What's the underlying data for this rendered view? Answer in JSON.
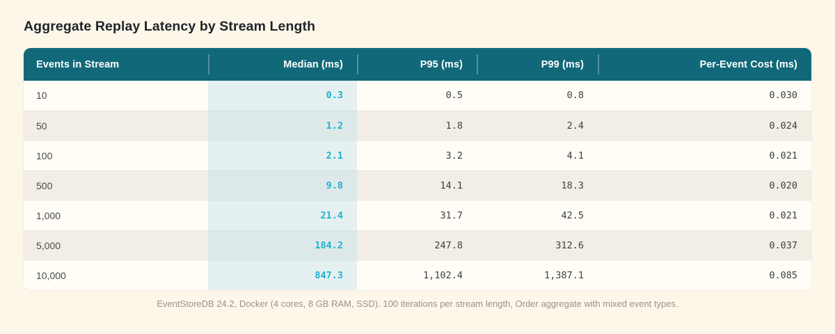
{
  "title": "Aggregate Replay Latency by Stream Length",
  "colors": {
    "page_bg": "#fdf7e9",
    "header_bg": "#116879",
    "median_accent": "#1fb1d2",
    "median_highlight_odd": "#e4f1f0",
    "median_highlight_even": "#dde9e8",
    "row_odd_bg": "#fffdf6",
    "row_even_bg": "#f2eee5"
  },
  "table": {
    "headers": {
      "events": "Events in Stream",
      "median": "Median (ms)",
      "p95": "P95 (ms)",
      "p99": "P99 (ms)",
      "per_event": "Per-Event Cost (ms)"
    },
    "rows": [
      {
        "events": "10",
        "median": "0.3",
        "p95": "0.5",
        "p99": "0.8",
        "per_event": "0.030"
      },
      {
        "events": "50",
        "median": "1.2",
        "p95": "1.8",
        "p99": "2.4",
        "per_event": "0.024"
      },
      {
        "events": "100",
        "median": "2.1",
        "p95": "3.2",
        "p99": "4.1",
        "per_event": "0.021"
      },
      {
        "events": "500",
        "median": "9.8",
        "p95": "14.1",
        "p99": "18.3",
        "per_event": "0.020"
      },
      {
        "events": "1,000",
        "median": "21.4",
        "p95": "31.7",
        "p99": "42.5",
        "per_event": "0.021"
      },
      {
        "events": "5,000",
        "median": "184.2",
        "p95": "247.8",
        "p99": "312.6",
        "per_event": "0.037"
      },
      {
        "events": "10,000",
        "median": "847.3",
        "p95": "1,102.4",
        "p99": "1,387.1",
        "per_event": "0.085"
      }
    ]
  },
  "footnote": "EventStoreDB 24.2, Docker (4 cores, 8 GB RAM, SSD). 100 iterations per stream length, Order aggregate with mixed event types.",
  "chart_data": {
    "type": "table",
    "title": "Aggregate Replay Latency by Stream Length",
    "columns": [
      "Events in Stream",
      "Median (ms)",
      "P95 (ms)",
      "P99 (ms)",
      "Per-Event Cost (ms)"
    ],
    "events_in_stream": [
      10,
      50,
      100,
      500,
      1000,
      5000,
      10000
    ],
    "series": [
      {
        "name": "Median (ms)",
        "values": [
          0.3,
          1.2,
          2.1,
          9.8,
          21.4,
          184.2,
          847.3
        ]
      },
      {
        "name": "P95 (ms)",
        "values": [
          0.5,
          1.8,
          3.2,
          14.1,
          31.7,
          247.8,
          1102.4
        ]
      },
      {
        "name": "P99 (ms)",
        "values": [
          0.8,
          2.4,
          4.1,
          18.3,
          42.5,
          312.6,
          1387.1
        ]
      },
      {
        "name": "Per-Event Cost (ms)",
        "values": [
          0.03,
          0.024,
          0.021,
          0.02,
          0.021,
          0.037,
          0.085
        ]
      }
    ],
    "notes": "Median column visually highlighted in cyan"
  }
}
